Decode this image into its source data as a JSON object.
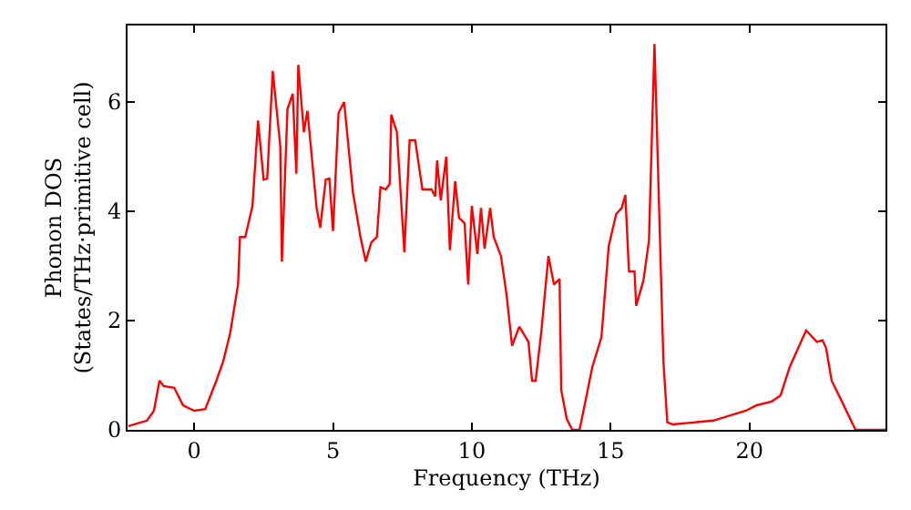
{
  "chart_data": {
    "type": "line",
    "xlabel": "Frequency (THz)",
    "ylabel": "Phonon DOS\n(States/THz·primitive cell)",
    "xlim": [
      -2.4,
      24.9
    ],
    "ylim": [
      0,
      7.4
    ],
    "xticks": [
      0,
      5,
      10,
      15,
      20
    ],
    "yticks": [
      0,
      2,
      4,
      6
    ],
    "legend": false,
    "marker": "none",
    "line_style": "solid",
    "series": [
      {
        "color": "#ff0000",
        "x": [
          -2.37,
          -1.7,
          -1.45,
          -1.25,
          -1.1,
          -0.72,
          -0.4,
          0,
          0.4,
          0.8,
          1.05,
          1.3,
          1.58,
          1.65,
          1.84,
          2.1,
          2.3,
          2.5,
          2.63,
          2.83,
          3.1,
          3.16,
          3.36,
          3.55,
          3.68,
          3.75,
          3.95,
          4.08,
          4.41,
          4.54,
          4.74,
          4.87,
          5.0,
          5.2,
          5.4,
          5.72,
          5.99,
          6.18,
          6.38,
          6.58,
          6.71,
          6.9,
          7.04,
          7.1,
          7.3,
          7.57,
          7.76,
          7.96,
          8.22,
          8.55,
          8.68,
          8.75,
          8.88,
          9.08,
          9.21,
          9.4,
          9.54,
          9.74,
          9.87,
          10.0,
          10.2,
          10.33,
          10.46,
          10.66,
          10.79,
          11.05,
          11.25,
          11.45,
          11.71,
          12.04,
          12.17,
          12.3,
          12.5,
          12.76,
          12.96,
          13.16,
          13.22,
          13.42,
          13.62,
          13.88,
          14.08,
          14.34,
          14.67,
          14.93,
          15.2,
          15.4,
          15.53,
          15.66,
          15.86,
          15.92,
          16.18,
          16.38,
          16.58,
          16.9,
          17.04,
          17.24,
          18.7,
          19.87,
          20.26,
          20.8,
          21.12,
          21.45,
          22.04,
          22.43,
          22.63,
          22.76,
          22.96,
          23.29,
          23.82,
          24.9
        ],
        "values": [
          0.07,
          0.17,
          0.35,
          0.9,
          0.8,
          0.77,
          0.45,
          0.35,
          0.38,
          0.9,
          1.26,
          1.78,
          2.66,
          3.53,
          3.53,
          4.1,
          5.66,
          4.58,
          4.6,
          6.57,
          5.2,
          3.08,
          5.87,
          6.15,
          4.69,
          6.68,
          5.45,
          5.84,
          4.06,
          3.7,
          4.58,
          4.6,
          3.64,
          5.8,
          6.0,
          4.34,
          3.53,
          3.08,
          3.43,
          3.53,
          4.44,
          4.4,
          4.5,
          5.77,
          5.45,
          3.25,
          5.3,
          5.3,
          4.4,
          4.4,
          4.27,
          4.93,
          4.2,
          5.0,
          3.29,
          4.55,
          3.88,
          3.78,
          2.66,
          4.1,
          3.22,
          4.06,
          3.32,
          4.06,
          3.53,
          3.18,
          2.48,
          1.54,
          1.89,
          1.61,
          0.9,
          0.9,
          1.78,
          3.18,
          2.66,
          2.76,
          0.73,
          0.2,
          0,
          0,
          0.49,
          1.15,
          1.7,
          3.36,
          3.95,
          4.06,
          4.3,
          2.9,
          2.9,
          2.27,
          2.73,
          3.46,
          7.06,
          1.26,
          0.14,
          0.1,
          0.17,
          0.35,
          0.45,
          0.52,
          0.63,
          1.15,
          1.82,
          1.61,
          1.64,
          1.5,
          0.9,
          0.56,
          0,
          0
        ]
      }
    ]
  }
}
